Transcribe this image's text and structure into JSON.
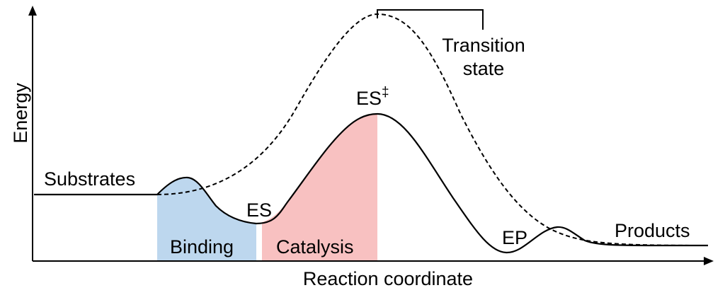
{
  "diagram": {
    "axes": {
      "y_label": "Energy",
      "x_label": "Reaction coordinate"
    },
    "labels": {
      "substrates": "Substrates",
      "es": "ES",
      "es_transition_main": "ES",
      "es_transition_sup": "‡",
      "ep": "EP",
      "products": "Products",
      "transition_state_line1": "Transition",
      "transition_state_line2": "state"
    },
    "regions": {
      "binding": "Binding",
      "catalysis": "Catalysis"
    },
    "colors": {
      "binding_fill": "#bdd7ee",
      "catalysis_fill": "#f8c1c1",
      "curve": "#000000"
    }
  }
}
